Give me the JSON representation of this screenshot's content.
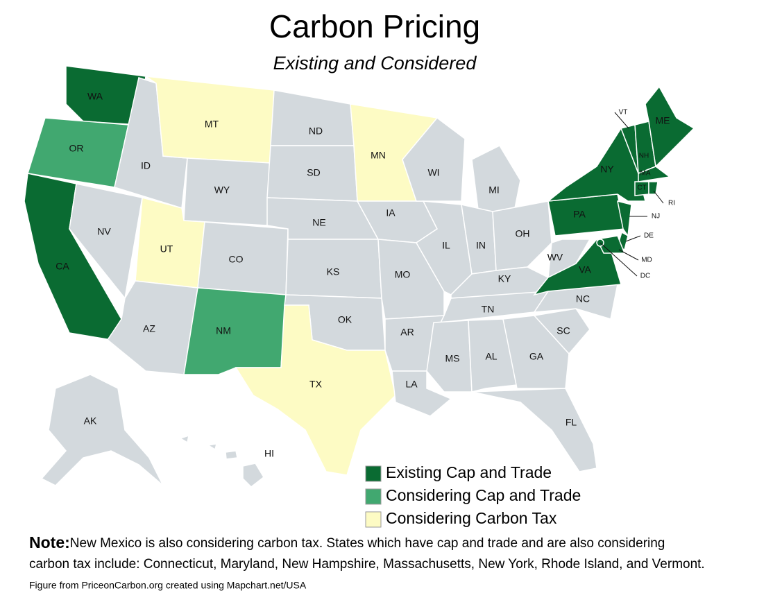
{
  "title": "Carbon Pricing",
  "subtitle": "Existing and Considered",
  "legend": [
    {
      "label": "Existing Cap and Trade",
      "color": "#0a6b32"
    },
    {
      "label": "Considering Cap and Trade",
      "color": "#41a870"
    },
    {
      "label": "Considering Carbon Tax",
      "color": "#fdfbc4"
    }
  ],
  "base_color": "#d3d9dd",
  "states": [
    {
      "label": "WA",
      "category": 0
    },
    {
      "label": "OR",
      "category": 1
    },
    {
      "label": "CA",
      "category": 0
    },
    {
      "label": "NV",
      "category": null
    },
    {
      "label": "ID",
      "category": null
    },
    {
      "label": "MT",
      "category": 2
    },
    {
      "label": "WY",
      "category": null
    },
    {
      "label": "UT",
      "category": 2
    },
    {
      "label": "CO",
      "category": null
    },
    {
      "label": "AZ",
      "category": null
    },
    {
      "label": "NM",
      "category": 1
    },
    {
      "label": "ND",
      "category": null
    },
    {
      "label": "SD",
      "category": null
    },
    {
      "label": "NE",
      "category": null
    },
    {
      "label": "KS",
      "category": null
    },
    {
      "label": "OK",
      "category": null
    },
    {
      "label": "TX",
      "category": 2
    },
    {
      "label": "MN",
      "category": 2
    },
    {
      "label": "IA",
      "category": null
    },
    {
      "label": "MO",
      "category": null
    },
    {
      "label": "AR",
      "category": null
    },
    {
      "label": "LA",
      "category": null
    },
    {
      "label": "WI",
      "category": null
    },
    {
      "label": "IL",
      "category": null
    },
    {
      "label": "MI",
      "category": null
    },
    {
      "label": "IN",
      "category": null
    },
    {
      "label": "OH",
      "category": null
    },
    {
      "label": "KY",
      "category": null
    },
    {
      "label": "TN",
      "category": null
    },
    {
      "label": "MS",
      "category": null
    },
    {
      "label": "AL",
      "category": null
    },
    {
      "label": "GA",
      "category": null
    },
    {
      "label": "FL",
      "category": null
    },
    {
      "label": "SC",
      "category": null
    },
    {
      "label": "NC",
      "category": null
    },
    {
      "label": "VA",
      "category": 0
    },
    {
      "label": "WV",
      "category": null
    },
    {
      "label": "PA",
      "category": 0
    },
    {
      "label": "NY",
      "category": 0
    },
    {
      "label": "NJ",
      "category": 0
    },
    {
      "label": "DE",
      "category": 0
    },
    {
      "label": "MD",
      "category": 0
    },
    {
      "label": "DC",
      "category": 0
    },
    {
      "label": "VT",
      "category": 0
    },
    {
      "label": "NH",
      "category": 0
    },
    {
      "label": "ME",
      "category": 0
    },
    {
      "label": "MA",
      "category": 0
    },
    {
      "label": "CT",
      "category": 0
    },
    {
      "label": "RI",
      "category": 0
    },
    {
      "label": "AK",
      "category": null
    },
    {
      "label": "HI",
      "category": null
    }
  ],
  "note": {
    "heading": "Note:",
    "lines": [
      "New Mexico is also considering carbon tax. States which have cap and trade and are also considering",
      "carbon tax include: Connecticut, Maryland, New Hampshire, Massachusetts, New York, Rhode Island, and Vermont."
    ]
  },
  "source": "Figure from PriceonCarbon.org created using Mapchart.net/USA"
}
